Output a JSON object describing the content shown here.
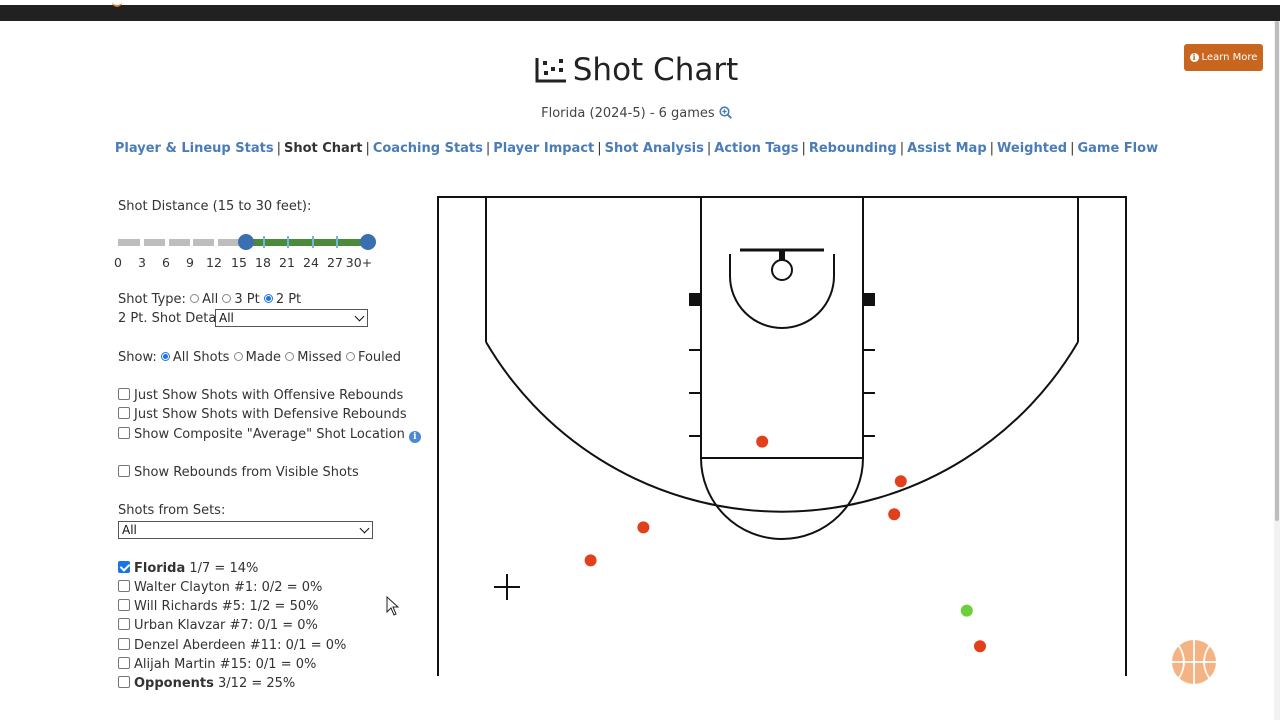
{
  "header": {
    "title": "Shot Chart",
    "subtitle": "Florida (2024-5) - 6 games",
    "learn_more": "Learn More"
  },
  "nav": [
    {
      "label": "Player & Lineup Stats",
      "current": false
    },
    {
      "label": "Shot Chart",
      "current": true
    },
    {
      "label": "Coaching Stats",
      "current": false
    },
    {
      "label": "Player Impact",
      "current": false
    },
    {
      "label": "Shot Analysis",
      "current": false
    },
    {
      "label": "Action Tags",
      "current": false
    },
    {
      "label": "Rebounding",
      "current": false
    },
    {
      "label": "Assist Map",
      "current": false
    },
    {
      "label": "Weighted",
      "current": false
    },
    {
      "label": "Game Flow",
      "current": false
    }
  ],
  "nav_separator": "|",
  "distance": {
    "label": "Shot Distance (15 to 30 feet):",
    "ticks": [
      "0",
      "3",
      "6",
      "9",
      "12",
      "15",
      "18",
      "21",
      "24",
      "27",
      "30+"
    ],
    "min_selected": 15,
    "max_selected": 30
  },
  "shot_type": {
    "label": "Shot Type:",
    "options": [
      "All",
      "3 Pt",
      "2 Pt"
    ],
    "selected": "2 Pt",
    "detail_label": "2 Pt. Shot Detail:",
    "detail_value": "All"
  },
  "show": {
    "label": "Show:",
    "options": [
      "All Shots",
      "Made",
      "Missed",
      "Fouled"
    ],
    "selected": "All Shots"
  },
  "options": {
    "offensive_rebounds": "Just Show Shots with Offensive Rebounds",
    "defensive_rebounds": "Just Show Shots with Defensive Rebounds",
    "composite": "Show Composite \"Average\" Shot Location",
    "rebounds_visible": "Show Rebounds from Visible Shots"
  },
  "sets": {
    "label": "Shots from Sets:",
    "value": "All"
  },
  "players": [
    {
      "name": "Florida",
      "stat": "1/7 = 14%",
      "bold": true,
      "checked": true
    },
    {
      "name": "Walter Clayton #1:",
      "stat": "0/2 = 0%",
      "bold": false,
      "checked": false
    },
    {
      "name": "Will Richards #5:",
      "stat": "1/2 = 50%",
      "bold": false,
      "checked": false
    },
    {
      "name": "Urban Klavzar #7:",
      "stat": "0/1 = 0%",
      "bold": false,
      "checked": false
    },
    {
      "name": "Denzel Aberdeen #11:",
      "stat": "0/1 = 0%",
      "bold": false,
      "checked": false
    },
    {
      "name": "Alijah Martin #15:",
      "stat": "0/1 = 0%",
      "bold": false,
      "checked": false
    },
    {
      "name": "Opponents",
      "stat": "3/12 = 25%",
      "bold": true,
      "checked": false
    }
  ],
  "shots": [
    {
      "court_x": -14.5,
      "court_y": 22.0,
      "result": "missed"
    },
    {
      "court_x": -10.5,
      "court_y": 19.5,
      "result": "missed"
    },
    {
      "court_x": -1.5,
      "court_y": 13.0,
      "result": "missed"
    },
    {
      "court_x": 8.5,
      "court_y": 18.5,
      "result": "missed"
    },
    {
      "court_x": 9.0,
      "court_y": 16.0,
      "result": "missed"
    },
    {
      "court_x": 14.0,
      "court_y": 25.8,
      "result": "made"
    },
    {
      "court_x": 15.0,
      "court_y": 28.5,
      "result": "missed"
    }
  ],
  "colors": {
    "accent": "#c8661f",
    "link": "#4a7cb8",
    "range": "#4a8a3a",
    "handle": "#3a6fb0",
    "missed": "#e2401c",
    "made": "#6ad03a"
  },
  "icons": {
    "title": "scatter-chart-icon",
    "zoom": "search-plus-icon",
    "learn_more": "info-circle-icon",
    "composite_info": "info-circle-icon",
    "floating": "basketball-icon"
  }
}
